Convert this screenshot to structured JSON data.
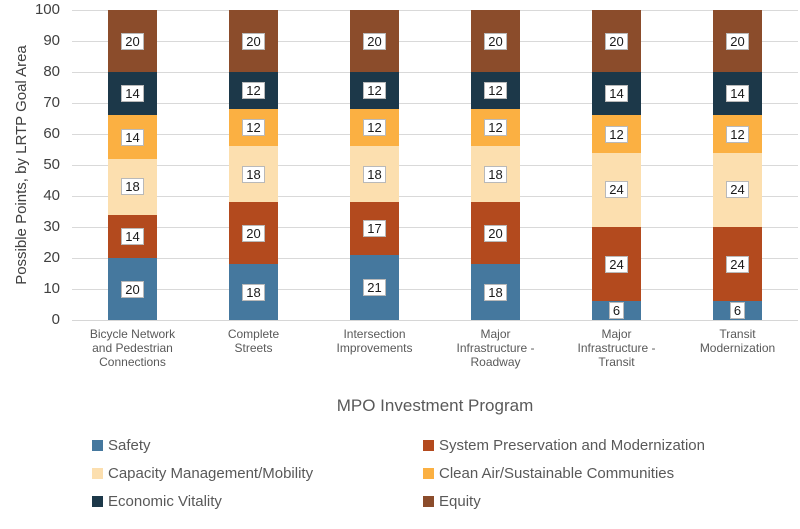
{
  "chart_data": {
    "type": "bar",
    "stacked": true,
    "title": "",
    "xlabel": "MPO Investment Program",
    "ylabel": "Possible Points, by LRTP Goal Area",
    "ylim": [
      0,
      100
    ],
    "yticks": [
      0,
      10,
      20,
      30,
      40,
      50,
      60,
      70,
      80,
      90,
      100
    ],
    "grid": "horizontal",
    "gridline_color": "#D9D9D9",
    "legend_position": "bottom-two-columns",
    "data_labels": "white-box-on-segment",
    "categories": [
      "Bicycle Network and Pedestrian Connections",
      "Complete Streets",
      "Intersection Improvements",
      "Major Infrastructure - Roadway",
      "Major Infrastructure - Transit",
      "Transit Modernization"
    ],
    "series": [
      {
        "name": "Safety",
        "color": "#45789E",
        "values": [
          20,
          18,
          21,
          18,
          6,
          6
        ]
      },
      {
        "name": "System Preservation and Modernization",
        "color": "#B34A1E",
        "values": [
          14,
          20,
          17,
          20,
          24,
          24
        ]
      },
      {
        "name": "Capacity Management/Mobility",
        "color": "#FCDFAF",
        "values": [
          18,
          18,
          18,
          18,
          24,
          24
        ]
      },
      {
        "name": "Clean Air/Sustainable Communities",
        "color": "#FBB042",
        "values": [
          14,
          12,
          12,
          12,
          12,
          12
        ]
      },
      {
        "name": "Economic Vitality",
        "color": "#1C3849",
        "values": [
          14,
          12,
          12,
          12,
          14,
          14
        ]
      },
      {
        "name": "Equity",
        "color": "#8B4C2B",
        "values": [
          20,
          20,
          20,
          20,
          20,
          20
        ]
      }
    ]
  },
  "colors": {
    "background": "#FFFFFF",
    "axis_text": "#404040",
    "category_text": "#595959",
    "legend_text": "#595959",
    "gridline": "#D9D9D9"
  }
}
